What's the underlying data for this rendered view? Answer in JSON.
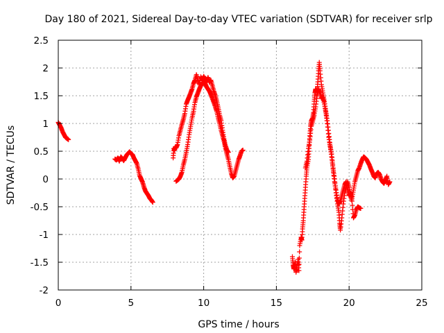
{
  "chart_data": {
    "type": "scatter",
    "title": "Day 180 of 2021, Sidereal Day-to-day VTEC variation (SDTVAR) for receiver srlp",
    "xlabel": "GPS time / hours",
    "ylabel": "SDTVAR / TECUs",
    "xlim": [
      0,
      25
    ],
    "ylim": [
      -2,
      2.5
    ],
    "xticks": [
      "0",
      "5",
      "10",
      "15",
      "20",
      "25"
    ],
    "yticks": [
      "2.5",
      "2",
      "1.5",
      "1",
      "0.5",
      "0",
      "-0.5",
      "-1",
      "-1.5",
      "-2"
    ],
    "grid": true,
    "marker": "+",
    "color": "#ff0000",
    "series": [
      {
        "name": "SDTVAR",
        "segments": [
          [
            [
              0.0,
              1.02
            ],
            [
              0.1,
              0.97
            ],
            [
              0.2,
              0.92
            ],
            [
              0.3,
              0.85
            ],
            [
              0.4,
              0.8
            ],
            [
              0.5,
              0.75
            ],
            [
              0.6,
              0.73
            ],
            [
              0.7,
              0.71
            ]
          ],
          [
            [
              3.9,
              0.36
            ],
            [
              4.0,
              0.34
            ],
            [
              4.1,
              0.38
            ],
            [
              4.2,
              0.32
            ],
            [
              4.3,
              0.4
            ],
            [
              4.4,
              0.37
            ],
            [
              4.5,
              0.33
            ],
            [
              4.6,
              0.38
            ],
            [
              4.7,
              0.43
            ],
            [
              4.8,
              0.46
            ],
            [
              4.9,
              0.49
            ],
            [
              5.0,
              0.46
            ],
            [
              5.1,
              0.44
            ],
            [
              5.2,
              0.38
            ],
            [
              5.3,
              0.33
            ],
            [
              5.4,
              0.28
            ],
            [
              5.5,
              0.18
            ],
            [
              5.6,
              0.06
            ],
            [
              5.7,
              0.0
            ],
            [
              5.8,
              -0.06
            ],
            [
              5.9,
              -0.15
            ],
            [
              6.0,
              -0.22
            ],
            [
              6.1,
              -0.26
            ],
            [
              6.2,
              -0.3
            ],
            [
              6.3,
              -0.35
            ],
            [
              6.4,
              -0.38
            ],
            [
              6.5,
              -0.42
            ]
          ],
          [
            [
              7.9,
              0.38
            ],
            [
              7.95,
              0.55
            ],
            [
              8.0,
              0.52
            ],
            [
              8.05,
              0.58
            ],
            [
              8.1,
              0.56
            ],
            [
              8.2,
              0.62
            ],
            [
              8.3,
              0.78
            ],
            [
              8.4,
              0.88
            ],
            [
              8.5,
              0.98
            ],
            [
              8.6,
              1.07
            ],
            [
              8.7,
              1.18
            ],
            [
              8.8,
              1.35
            ],
            [
              8.9,
              1.42
            ],
            [
              9.0,
              1.48
            ],
            [
              9.1,
              1.55
            ],
            [
              9.2,
              1.62
            ],
            [
              9.3,
              1.72
            ],
            [
              9.4,
              1.78
            ],
            [
              9.5,
              1.88
            ],
            [
              9.6,
              1.78
            ],
            [
              9.7,
              1.7
            ],
            [
              9.8,
              1.84
            ],
            [
              9.9,
              1.78
            ],
            [
              10.0,
              1.85
            ],
            [
              10.1,
              1.8
            ],
            [
              10.2,
              1.76
            ],
            [
              10.3,
              1.83
            ],
            [
              10.4,
              1.74
            ],
            [
              10.5,
              1.78
            ],
            [
              10.6,
              1.68
            ],
            [
              10.7,
              1.58
            ],
            [
              10.8,
              1.5
            ],
            [
              10.9,
              1.4
            ],
            [
              11.0,
              1.28
            ],
            [
              11.1,
              1.15
            ],
            [
              11.2,
              1.05
            ],
            [
              11.3,
              0.88
            ],
            [
              11.4,
              0.72
            ],
            [
              11.5,
              0.6
            ],
            [
              11.6,
              0.52
            ],
            [
              11.7,
              0.48
            ]
          ],
          [
            [
              8.1,
              -0.04
            ],
            [
              8.2,
              -0.02
            ],
            [
              8.3,
              0.0
            ],
            [
              8.4,
              0.05
            ],
            [
              8.5,
              0.12
            ],
            [
              8.6,
              0.25
            ],
            [
              8.7,
              0.35
            ],
            [
              8.8,
              0.48
            ],
            [
              8.9,
              0.62
            ],
            [
              9.0,
              0.8
            ],
            [
              9.1,
              0.95
            ],
            [
              9.2,
              1.1
            ],
            [
              9.3,
              1.22
            ],
            [
              9.4,
              1.38
            ],
            [
              9.5,
              1.48
            ],
            [
              9.6,
              1.55
            ],
            [
              9.7,
              1.62
            ],
            [
              9.8,
              1.68
            ],
            [
              9.9,
              1.72
            ],
            [
              10.0,
              1.75
            ],
            [
              10.1,
              1.72
            ],
            [
              10.2,
              1.66
            ],
            [
              10.3,
              1.62
            ],
            [
              10.4,
              1.58
            ],
            [
              10.5,
              1.52
            ],
            [
              10.6,
              1.45
            ],
            [
              10.7,
              1.38
            ],
            [
              10.8,
              1.3
            ],
            [
              10.9,
              1.22
            ],
            [
              11.0,
              1.1
            ],
            [
              11.1,
              1.0
            ],
            [
              11.2,
              0.88
            ],
            [
              11.3,
              0.78
            ],
            [
              11.4,
              0.68
            ],
            [
              11.5,
              0.55
            ],
            [
              11.6,
              0.45
            ],
            [
              11.7,
              0.35
            ],
            [
              11.8,
              0.22
            ],
            [
              11.9,
              0.1
            ],
            [
              12.0,
              0.02
            ],
            [
              12.1,
              0.05
            ],
            [
              12.2,
              0.15
            ],
            [
              12.3,
              0.25
            ],
            [
              12.4,
              0.35
            ],
            [
              12.5,
              0.42
            ],
            [
              12.6,
              0.5
            ],
            [
              12.7,
              0.52
            ]
          ],
          [
            [
              16.1,
              -1.4
            ],
            [
              16.15,
              -1.55
            ],
            [
              16.2,
              -1.62
            ],
            [
              16.3,
              -1.5
            ],
            [
              16.35,
              -1.68
            ],
            [
              16.4,
              -1.6
            ],
            [
              16.5,
              -1.45
            ],
            [
              16.55,
              -1.65
            ],
            [
              16.6,
              -1.2
            ],
            [
              16.7,
              -1.05
            ],
            [
              16.75,
              -1.1
            ],
            [
              16.8,
              -0.9
            ],
            [
              16.85,
              -0.75
            ],
            [
              16.9,
              -0.55
            ],
            [
              16.95,
              -0.35
            ],
            [
              17.0,
              -0.15
            ],
            [
              17.05,
              0.05
            ],
            [
              17.1,
              0.2
            ],
            [
              17.2,
              0.35
            ],
            [
              17.25,
              0.55
            ],
            [
              17.3,
              0.78
            ],
            [
              17.35,
              0.95
            ],
            [
              17.4,
              1.05
            ],
            [
              17.5,
              1.1
            ],
            [
              17.55,
              1.2
            ],
            [
              17.6,
              1.4
            ],
            [
              17.65,
              1.55
            ],
            [
              17.7,
              1.62
            ],
            [
              17.8,
              1.58
            ],
            [
              17.85,
              1.75
            ],
            [
              17.9,
              1.95
            ],
            [
              17.95,
              2.1
            ],
            [
              18.0,
              1.95
            ],
            [
              18.1,
              1.7
            ],
            [
              18.2,
              1.55
            ],
            [
              18.3,
              1.4
            ],
            [
              18.4,
              1.22
            ],
            [
              18.5,
              1.05
            ],
            [
              18.6,
              0.82
            ],
            [
              18.7,
              0.6
            ],
            [
              18.8,
              0.45
            ],
            [
              18.9,
              0.2
            ],
            [
              19.0,
              0.0
            ],
            [
              19.1,
              -0.25
            ],
            [
              19.2,
              -0.45
            ],
            [
              19.3,
              -0.6
            ],
            [
              19.35,
              -0.8
            ],
            [
              19.4,
              -0.92
            ],
            [
              19.5,
              -0.7
            ],
            [
              19.6,
              -0.45
            ],
            [
              19.7,
              -0.25
            ],
            [
              19.8,
              -0.15
            ],
            [
              19.9,
              -0.05
            ],
            [
              20.0,
              -0.15
            ],
            [
              20.1,
              -0.3
            ],
            [
              20.2,
              -0.4
            ],
            [
              20.3,
              -0.7
            ],
            [
              20.4,
              -0.65
            ],
            [
              20.5,
              -0.55
            ],
            [
              20.6,
              -0.5
            ],
            [
              20.7,
              -0.52
            ],
            [
              20.8,
              -0.53
            ]
          ],
          [
            [
              17.0,
              0.2
            ],
            [
              17.1,
              0.32
            ],
            [
              17.2,
              0.55
            ],
            [
              17.3,
              0.7
            ],
            [
              17.4,
              0.95
            ],
            [
              17.5,
              1.05
            ],
            [
              17.6,
              1.15
            ],
            [
              17.7,
              1.3
            ],
            [
              17.8,
              1.5
            ],
            [
              17.9,
              1.62
            ],
            [
              18.0,
              1.55
            ],
            [
              18.1,
              1.45
            ],
            [
              18.2,
              1.48
            ],
            [
              18.3,
              1.35
            ],
            [
              18.4,
              1.2
            ],
            [
              18.5,
              1.0
            ],
            [
              18.6,
              0.75
            ],
            [
              18.7,
              0.58
            ],
            [
              18.8,
              0.4
            ],
            [
              18.9,
              0.18
            ],
            [
              19.0,
              -0.05
            ],
            [
              19.1,
              -0.2
            ],
            [
              19.2,
              -0.38
            ],
            [
              19.3,
              -0.45
            ],
            [
              19.4,
              -0.4
            ],
            [
              19.5,
              -0.3
            ],
            [
              19.6,
              -0.2
            ],
            [
              19.7,
              -0.1
            ],
            [
              19.8,
              -0.05
            ],
            [
              19.9,
              -0.2
            ],
            [
              20.0,
              -0.3
            ],
            [
              20.1,
              -0.25
            ],
            [
              20.2,
              -0.35
            ],
            [
              20.3,
              -0.2
            ],
            [
              20.4,
              -0.05
            ],
            [
              20.5,
              0.05
            ],
            [
              20.6,
              0.15
            ],
            [
              20.7,
              0.2
            ],
            [
              20.8,
              0.28
            ],
            [
              20.9,
              0.35
            ],
            [
              21.0,
              0.4
            ],
            [
              21.1,
              0.38
            ],
            [
              21.2,
              0.35
            ],
            [
              21.3,
              0.3
            ],
            [
              21.4,
              0.25
            ],
            [
              21.5,
              0.18
            ],
            [
              21.6,
              0.12
            ],
            [
              21.7,
              0.05
            ],
            [
              21.8,
              0.02
            ],
            [
              21.9,
              0.1
            ],
            [
              22.0,
              0.12
            ],
            [
              22.1,
              0.08
            ],
            [
              22.2,
              0.0
            ],
            [
              22.3,
              -0.05
            ],
            [
              22.4,
              -0.08
            ],
            [
              22.5,
              -0.02
            ],
            [
              22.6,
              0.05
            ],
            [
              22.7,
              -0.1
            ],
            [
              22.8,
              -0.05
            ]
          ]
        ]
      }
    ]
  }
}
